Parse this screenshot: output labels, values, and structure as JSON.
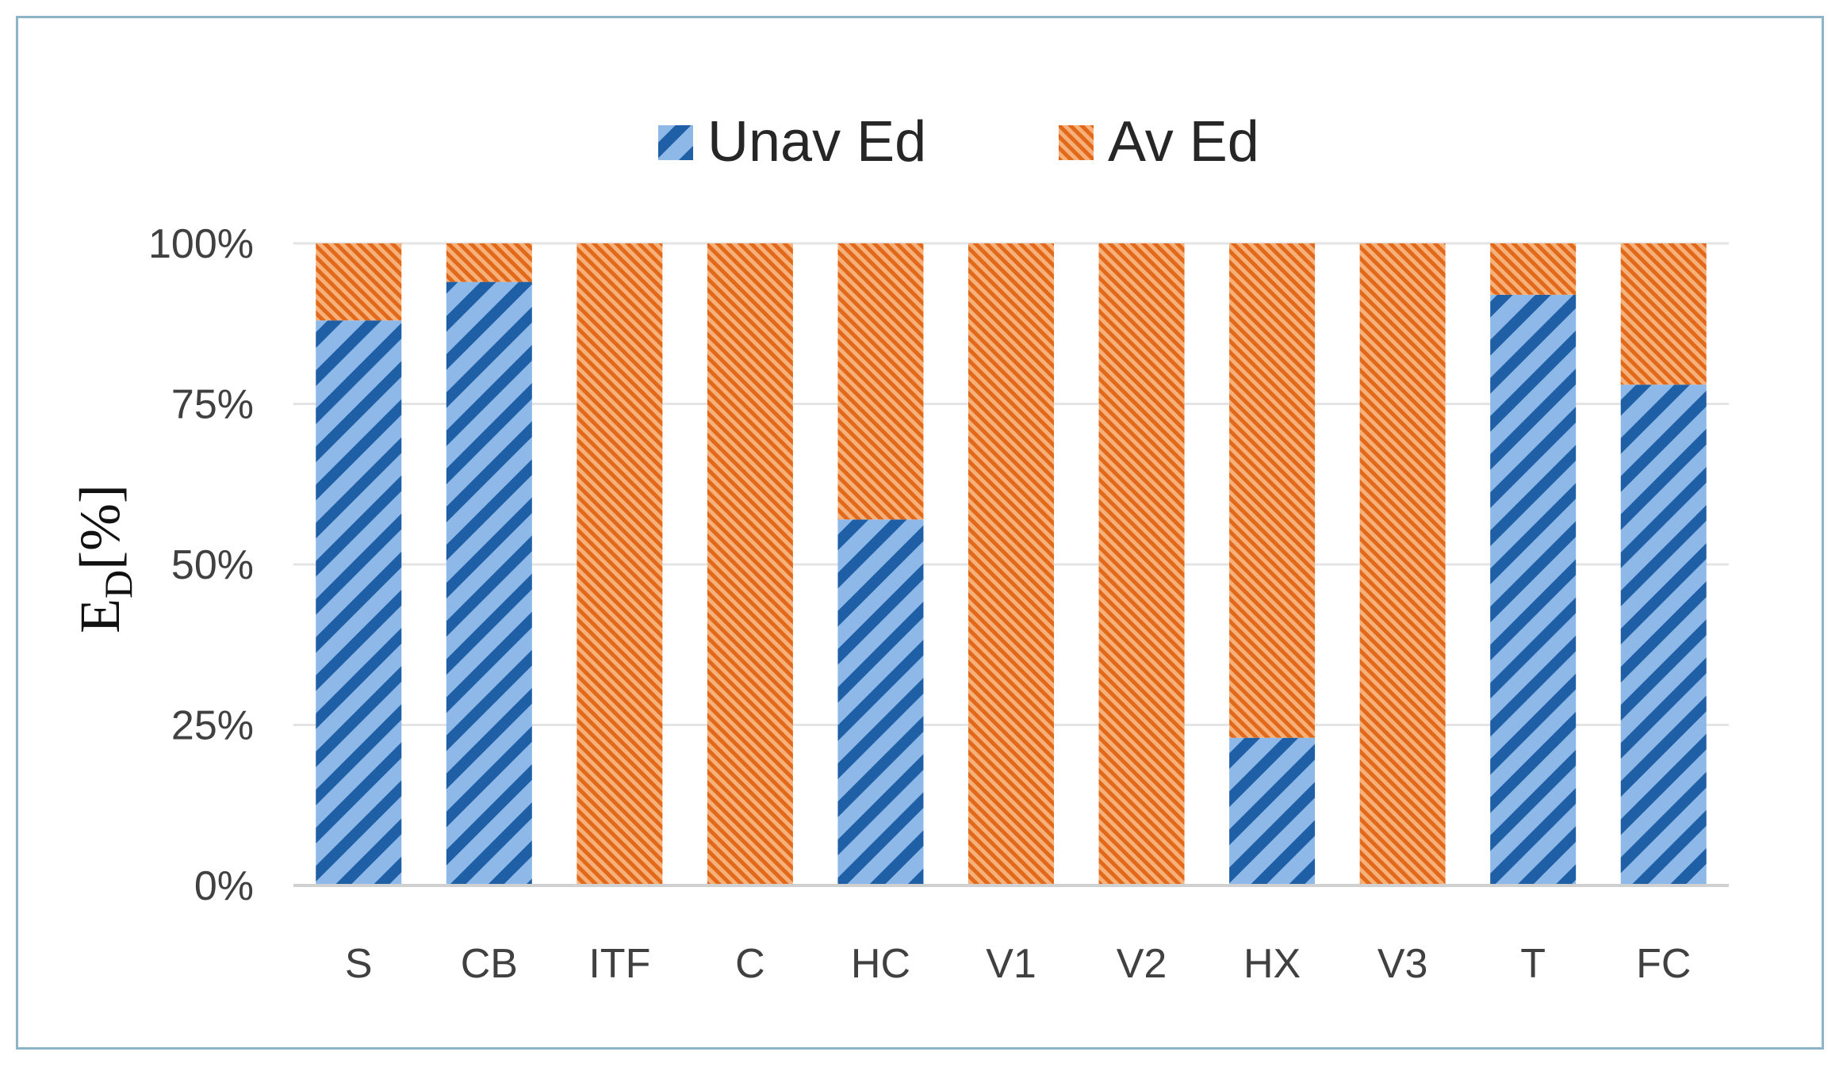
{
  "chart_data": {
    "type": "bar",
    "stacked": true,
    "percent": true,
    "categories": [
      "S",
      "CB",
      "ITF",
      "C",
      "HC",
      "V1",
      "V2",
      "HX",
      "V3",
      "T",
      "FC"
    ],
    "series": [
      {
        "name": "Unav Ed",
        "values": [
          88,
          94,
          0,
          0,
          57,
          0,
          0,
          23,
          0,
          92,
          78
        ],
        "color": "#5b9bd5",
        "stripe": "#1f5fa6"
      },
      {
        "name": "Av Ed",
        "values": [
          12,
          6,
          100,
          100,
          43,
          100,
          100,
          77,
          100,
          8,
          22
        ],
        "color": "#f4a15c",
        "stripe": "#e06a10"
      }
    ],
    "ylabel": "E",
    "ylabel_subscript": "D",
    "ylabel_suffix": "[%]",
    "ylim": [
      0,
      100
    ],
    "yticks": [
      "0%",
      "25%",
      "50%",
      "75%",
      "100%"
    ],
    "grid": true,
    "legend_position": "top-center"
  }
}
